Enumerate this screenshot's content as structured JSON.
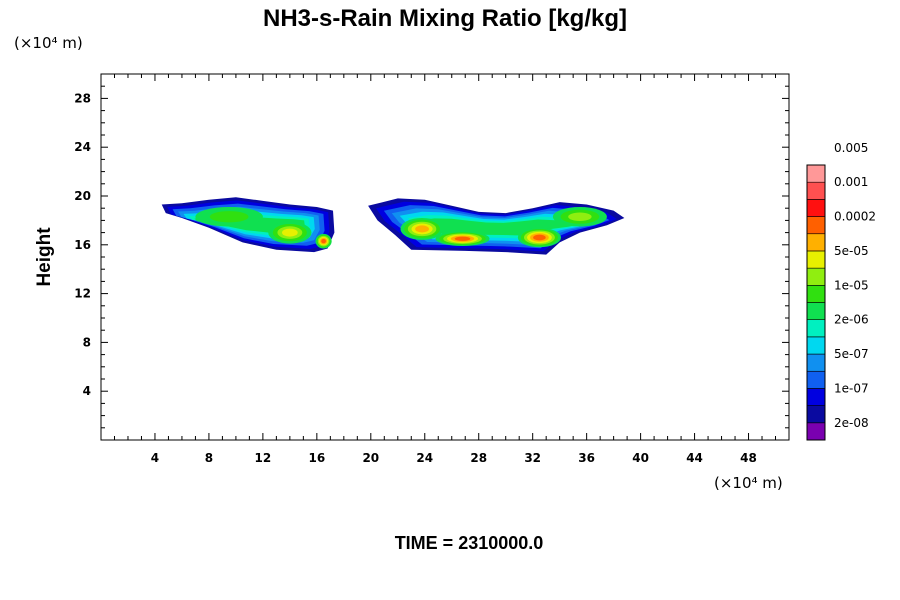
{
  "chart_data": {
    "type": "heatmap",
    "title": "NH3-s-Rain Mixing Ratio [kg/kg]",
    "ylabel": "Height",
    "x_unit_label": "(×10⁴ m)",
    "y_unit_label": "(×10⁴ m)",
    "time_label": "TIME = 2310000.0",
    "xlim": [
      0,
      51
    ],
    "ylim": [
      0,
      30
    ],
    "x_ticks": [
      "4",
      "8",
      "12",
      "16",
      "20",
      "24",
      "28",
      "32",
      "36",
      "40",
      "44",
      "48"
    ],
    "y_ticks": [
      "4",
      "8",
      "12",
      "16",
      "20",
      "24",
      "28"
    ],
    "grid": false,
    "colorbar": {
      "placement": "right",
      "labels": [
        "2e-08",
        "1e-07",
        "5e-07",
        "2e-06",
        "1e-05",
        "5e-05",
        "0.0002",
        "0.001",
        "0.005"
      ],
      "colors": [
        "#7a00b0",
        "#0a0aa0",
        "#0000e0",
        "#1060f0",
        "#1090f0",
        "#00d8f0",
        "#00f0c0",
        "#10e050",
        "#30e010",
        "#90ee10",
        "#e8f000",
        "#ffb000",
        "#ff6000",
        "#ff1010",
        "#ff5050",
        "#ff9898"
      ]
    },
    "regions": [
      {
        "outline": [
          [
            4.5,
            19.3
          ],
          [
            6,
            19.4
          ],
          [
            8,
            19.7
          ],
          [
            10,
            19.9
          ],
          [
            12,
            19.6
          ],
          [
            14,
            19.3
          ],
          [
            16,
            19.1
          ],
          [
            17.2,
            18.8
          ],
          [
            17.3,
            17.0
          ],
          [
            16.8,
            15.7
          ],
          [
            15.8,
            15.4
          ],
          [
            13,
            15.6
          ],
          [
            10.5,
            16.2
          ],
          [
            8,
            17.4
          ],
          [
            6,
            18.2
          ],
          [
            4.8,
            18.6
          ]
        ],
        "cores": [
          {
            "x": 9.5,
            "y": 18.3,
            "rx": 2.5,
            "ry": 0.8,
            "level": 8
          },
          {
            "x": 14.0,
            "y": 17.0,
            "rx": 1.6,
            "ry": 0.9,
            "level": 10
          },
          {
            "x": 16.5,
            "y": 16.3,
            "rx": 0.6,
            "ry": 0.6,
            "level": 12
          }
        ]
      },
      {
        "outline": [
          [
            19.8,
            19.2
          ],
          [
            22,
            19.8
          ],
          [
            24,
            19.7
          ],
          [
            26,
            19.2
          ],
          [
            28,
            18.7
          ],
          [
            30,
            18.6
          ],
          [
            32,
            19.0
          ],
          [
            34,
            19.5
          ],
          [
            36,
            19.3
          ],
          [
            38,
            18.8
          ],
          [
            38.8,
            18.2
          ],
          [
            37.5,
            17.6
          ],
          [
            35.5,
            17.0
          ],
          [
            34,
            16.2
          ],
          [
            33,
            15.2
          ],
          [
            30,
            15.4
          ],
          [
            27,
            15.5
          ],
          [
            23,
            15.6
          ],
          [
            21.8,
            16.8
          ],
          [
            20.5,
            18.0
          ]
        ],
        "cores": [
          {
            "x": 23.8,
            "y": 17.3,
            "rx": 1.6,
            "ry": 0.9,
            "level": 11
          },
          {
            "x": 26.8,
            "y": 16.5,
            "rx": 2.0,
            "ry": 0.6,
            "level": 12
          },
          {
            "x": 32.5,
            "y": 16.6,
            "rx": 1.6,
            "ry": 0.8,
            "level": 12
          },
          {
            "x": 35.5,
            "y": 18.3,
            "rx": 2.0,
            "ry": 0.8,
            "level": 9
          }
        ]
      }
    ]
  }
}
